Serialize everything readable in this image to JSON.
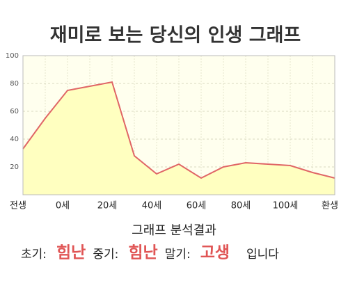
{
  "chart_data": {
    "type": "area",
    "title": "재미로 보는 당신의 인생 그래프",
    "categories": [
      "전생",
      null,
      "0세",
      null,
      "20세",
      null,
      "40세",
      null,
      "60세",
      null,
      "80세",
      null,
      "100세",
      null,
      "환생"
    ],
    "series": [
      {
        "color": "#e06666",
        "fill": "#ffffc0",
        "values": [
          33,
          55,
          75,
          78,
          81,
          28,
          15,
          22,
          12,
          20,
          23,
          22,
          21,
          16,
          12
        ]
      }
    ],
    "ylim": [
      0,
      100
    ],
    "yticks": [
      20,
      40,
      60,
      80,
      100
    ],
    "grid": true
  },
  "analysis": {
    "title": "그래프 분석결과",
    "items": [
      {
        "label": "초기:",
        "value": "힘난"
      },
      {
        "label": "중기:",
        "value": "힘난"
      },
      {
        "label": "말기:",
        "value": "고생"
      }
    ],
    "suffix": "입니다"
  }
}
